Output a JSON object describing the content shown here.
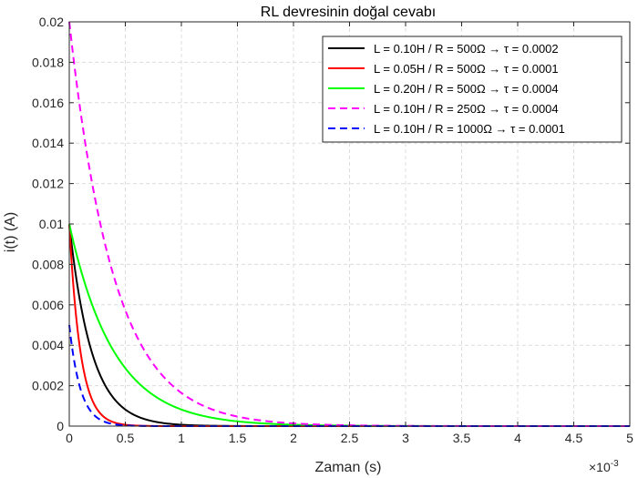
{
  "chart_data": {
    "type": "line",
    "title": "RL devresinin doğal cevabı",
    "xlabel": "Zaman (s)",
    "ylabel": "i(t) (A)",
    "x_exponent_label": "×10",
    "x_exponent_power": "-3",
    "xlim": [
      0,
      0.005
    ],
    "ylim": [
      0,
      0.02
    ],
    "x_tick_values": [
      0,
      0.0005,
      0.001,
      0.0015,
      0.002,
      0.0025,
      0.003,
      0.0035,
      0.004,
      0.0045,
      0.005
    ],
    "x_tick_labels": [
      "0",
      "0.5",
      "1",
      "1.5",
      "2",
      "2.5",
      "3",
      "3.5",
      "4",
      "4.5",
      "5"
    ],
    "y_tick_values": [
      0,
      0.002,
      0.004,
      0.006,
      0.008,
      0.01,
      0.012,
      0.014,
      0.016,
      0.018,
      0.02
    ],
    "y_tick_labels": [
      "0",
      "0.002",
      "0.004",
      "0.006",
      "0.008",
      "0.01",
      "0.012",
      "0.014",
      "0.016",
      "0.018",
      "0.02"
    ],
    "grid": true,
    "legend_position": "top-right",
    "series": [
      {
        "name": "L = 0.10H  /  R = 500Ω →  τ = 0.0002",
        "color": "#000000",
        "dash": "solid",
        "i0": 0.01,
        "tau": 0.0002
      },
      {
        "name": "L = 0.05H  /  R = 500Ω  →  τ = 0.0001",
        "color": "#ff0000",
        "dash": "solid",
        "i0": 0.01,
        "tau": 0.0001
      },
      {
        "name": "L = 0.20H  /  R = 500Ω  →  τ = 0.0004",
        "color": "#00ff00",
        "dash": "solid",
        "i0": 0.01,
        "tau": 0.0004
      },
      {
        "name": "L = 0.10H  /  R = 250Ω  →  τ = 0.0004",
        "color": "#ff00ff",
        "dash": "dashed",
        "i0": 0.02,
        "tau": 0.0004
      },
      {
        "name": "L = 0.10H  /  R = 1000Ω  →  τ = 0.0001",
        "color": "#0000ff",
        "dash": "dashed",
        "i0": 0.005,
        "tau": 0.0001
      }
    ]
  }
}
